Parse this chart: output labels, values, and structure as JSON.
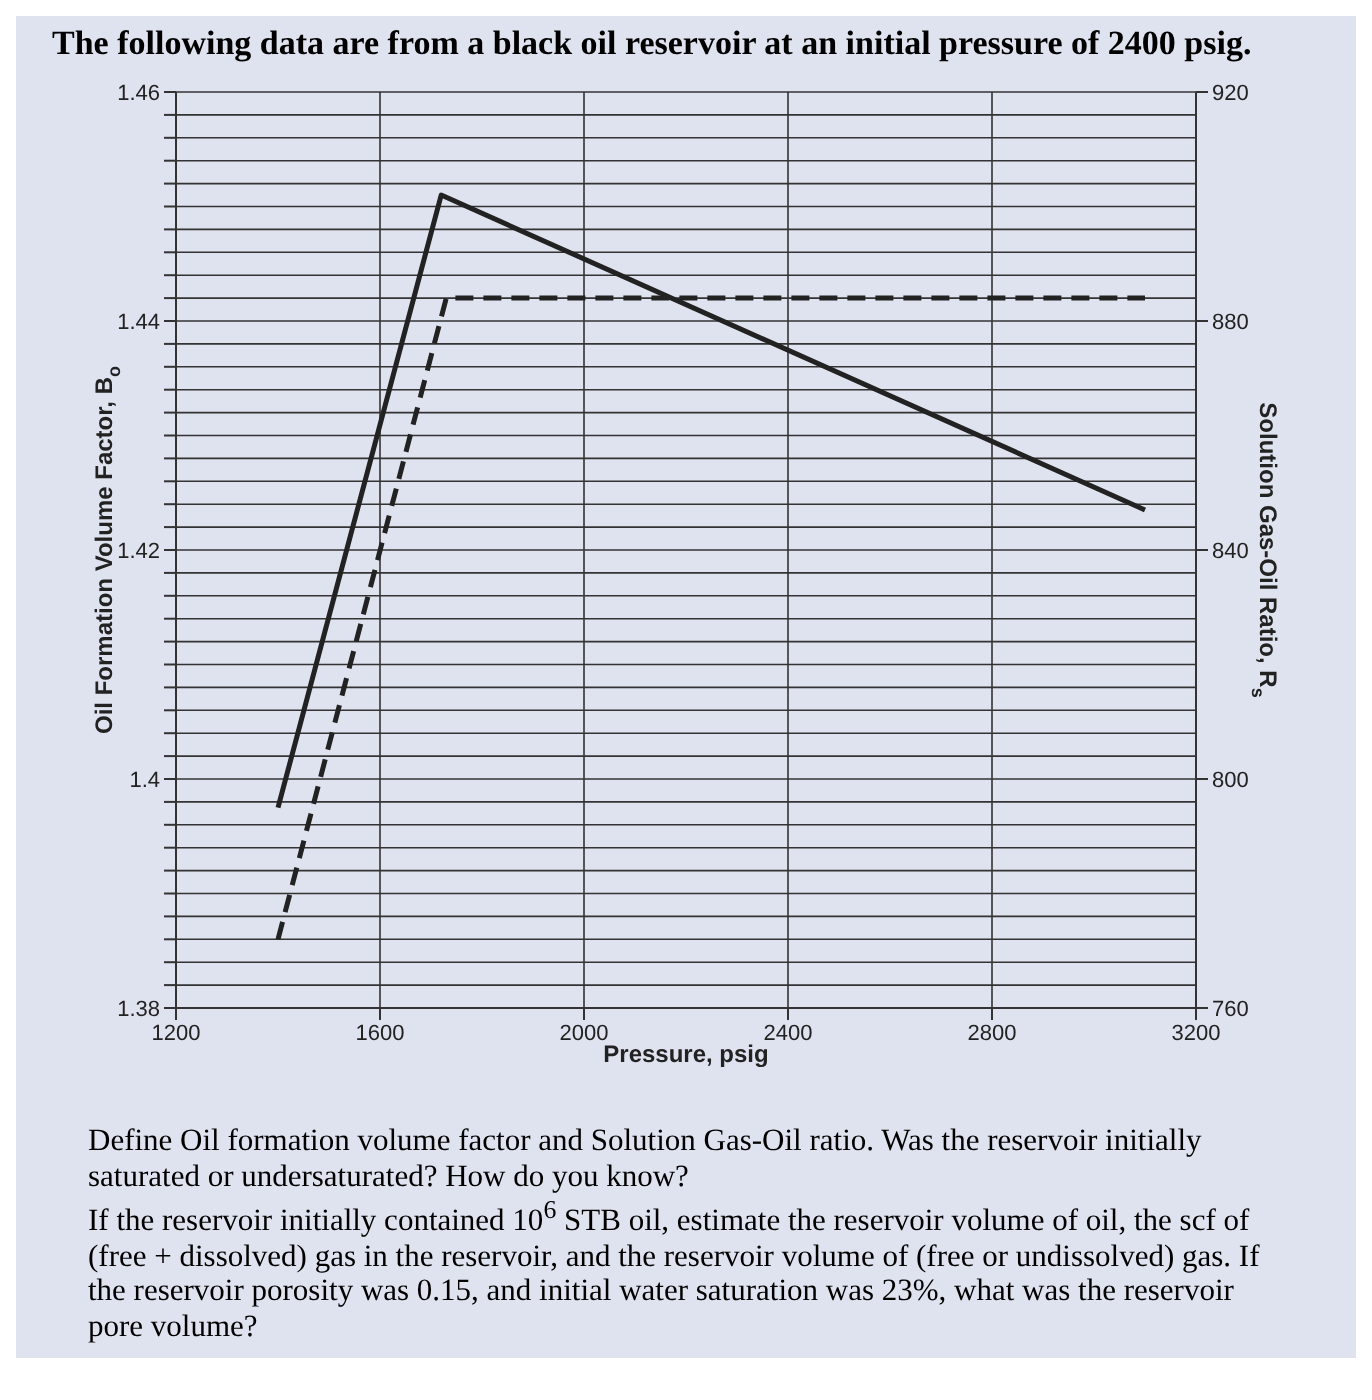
{
  "chart_data": {
    "type": "line",
    "title": "The following data are from a black oil reservoir at an initial pressure of 2400 psig.",
    "xlabel": "Pressure, psig",
    "ylabel": "Oil Formation Volume Factor, B$_{o}$",
    "y2label": "Solution Gas-Oil Ratio, R$_{s}$",
    "series": [
      {
        "color": "#222222",
        "line_style": "solid",
        "x": [
          1400,
          1720,
          3100
        ],
        "values": [
          1.3975,
          1.451,
          1.4235
        ]
      },
      {
        "color": "#222222",
        "line_style": "dashed",
        "axis": "y2",
        "x": [
          1400,
          1730,
          3100
        ],
        "values": [
          772,
          884,
          884
        ]
      }
    ],
    "xlim": [
      1200,
      3200
    ],
    "xticks": [
      1200,
      1600,
      2000,
      2400,
      2800,
      3200
    ],
    "ylim": [
      1.38,
      1.46
    ],
    "yticks": [
      1.38,
      {
        "value": 1.382,
        "label": null
      },
      {
        "value": 1.384,
        "label": null
      },
      {
        "value": 1.386,
        "label": null
      },
      {
        "value": 1.388,
        "label": null
      },
      {
        "value": 1.39,
        "label": null
      },
      {
        "value": 1.392,
        "label": null
      },
      {
        "value": 1.394,
        "label": null
      },
      {
        "value": 1.396,
        "label": null
      },
      {
        "value": 1.398,
        "label": null
      },
      1.4,
      {
        "value": 1.402,
        "label": null
      },
      {
        "value": 1.404,
        "label": null
      },
      {
        "value": 1.406,
        "label": null
      },
      {
        "value": 1.408,
        "label": null
      },
      {
        "value": 1.41,
        "label": null
      },
      {
        "value": 1.412,
        "label": null
      },
      {
        "value": 1.414,
        "label": null
      },
      {
        "value": 1.416,
        "label": null
      },
      {
        "value": 1.418,
        "label": null
      },
      1.42,
      {
        "value": 1.422,
        "label": null
      },
      {
        "value": 1.424,
        "label": null
      },
      {
        "value": 1.426,
        "label": null
      },
      {
        "value": 1.428,
        "label": null
      },
      {
        "value": 1.43,
        "label": null
      },
      {
        "value": 1.432,
        "label": null
      },
      {
        "value": 1.434,
        "label": null
      },
      {
        "value": 1.436,
        "label": null
      },
      {
        "value": 1.438,
        "label": null
      },
      1.44,
      {
        "value": 1.442,
        "label": null
      },
      {
        "value": 1.444,
        "label": null
      },
      {
        "value": 1.446,
        "label": null
      },
      {
        "value": 1.448,
        "label": null
      },
      {
        "value": 1.45,
        "label": null
      },
      {
        "value": 1.452,
        "label": null
      },
      {
        "value": 1.454,
        "label": null
      },
      {
        "value": 1.456,
        "label": null
      },
      {
        "value": 1.458,
        "label": null
      },
      1.46
    ],
    "y2lim": [
      760,
      920
    ],
    "y2ticks": [
      760,
      800,
      840,
      880,
      920
    ],
    "grid": true,
    "legend": false,
    "marker": "none",
    "annotations": [
      "Define Oil formation volume factor and Solution Gas-Oil ratio. Was the reservoir initially saturated or undersaturated? How do you know?",
      "If the reservoir initially contained 10$^{6}$ STB oil, estimate the reservoir volume of oil, the scf of (free + dissolved) gas in the reservoir, and the reservoir volume of (free or undissolved) gas. If the reservoir porosity was 0.15, and initial water saturation was 23%, what was the reservoir pore volume?"
    ]
  }
}
